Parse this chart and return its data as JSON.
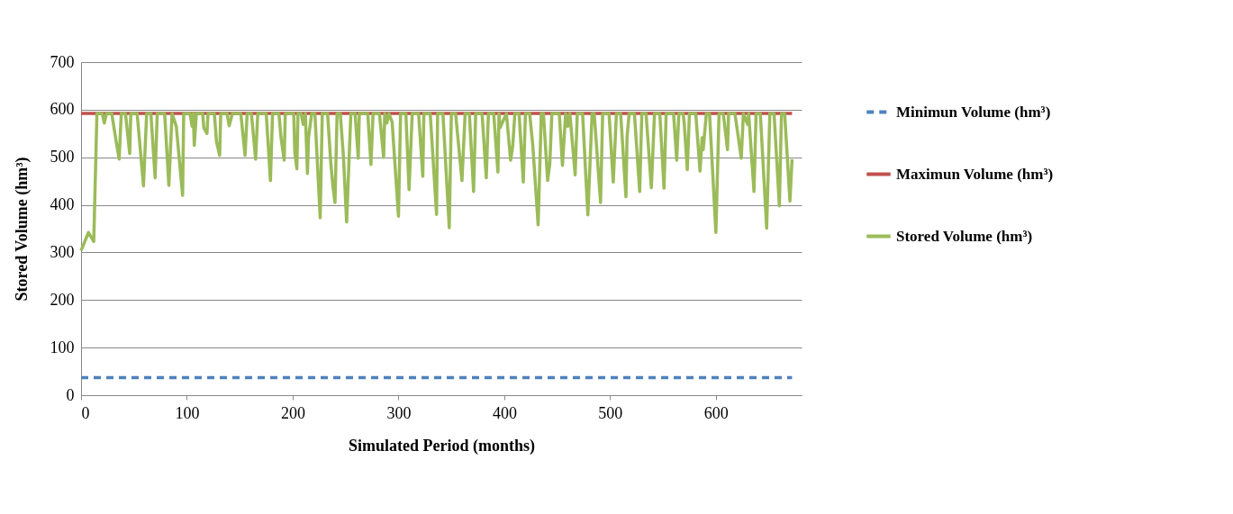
{
  "chart_data": {
    "type": "line",
    "xlabel": "Simulated Period (months)",
    "ylabel": "Stored Volume (hm³)",
    "xlim": [
      0,
      681
    ],
    "xticks": [
      0,
      100,
      200,
      300,
      400,
      500,
      600
    ],
    "ylim": [
      0,
      700
    ],
    "yticks": [
      0,
      100,
      200,
      300,
      400,
      500,
      600,
      700
    ],
    "grid": "y",
    "legend": "right",
    "series": [
      {
        "name": "Minimun Volume (hm³)",
        "color": "#4f81bd",
        "line_style": "dashed",
        "x": [
          0,
          672
        ],
        "values": [
          37,
          37
        ]
      },
      {
        "name": "Maximun Volume (hm³)",
        "color": "#c0504d",
        "line_style": "solid",
        "x": [
          0,
          672
        ],
        "values": [
          592,
          592
        ]
      },
      {
        "name": "Stored Volume (hm³)",
        "color": "#9bbb59",
        "line_style": "solid",
        "x": [
          0,
          7,
          12,
          15,
          20,
          22,
          24,
          29,
          33,
          36,
          38,
          42,
          46,
          47,
          53,
          59,
          62,
          66,
          70,
          72,
          79,
          83,
          86,
          90,
          96,
          97,
          103,
          105,
          106,
          107,
          109,
          115,
          116,
          119,
          120,
          126,
          128,
          131,
          132,
          138,
          140,
          143,
          151,
          155,
          157,
          161,
          165,
          167,
          175,
          179,
          181,
          187,
          189,
          192,
          193,
          201,
          202,
          204,
          205,
          208,
          210,
          212,
          214,
          215,
          218,
          221,
          226,
          228,
          233,
          236,
          238,
          240,
          242,
          245,
          248,
          251,
          253,
          255,
          259,
          262,
          263,
          271,
          274,
          276,
          282,
          286,
          287,
          289,
          291,
          294,
          300,
          302,
          307,
          310,
          313,
          319,
          323,
          324,
          330,
          336,
          337,
          342,
          348,
          350,
          354,
          360,
          363,
          367,
          369,
          371,
          373,
          379,
          383,
          385,
          390,
          394,
          395,
          396,
          402,
          406,
          408,
          410,
          414,
          418,
          420,
          424,
          427,
          432,
          435,
          437,
          441,
          443,
          445,
          452,
          455,
          458,
          460,
          462,
          467,
          469,
          474,
          479,
          483,
          485,
          491,
          493,
          499,
          503,
          506,
          510,
          515,
          516,
          518,
          523,
          528,
          530,
          534,
          539,
          542,
          547,
          551,
          553,
          560,
          563,
          565,
          569,
          570,
          573,
          575,
          581,
          585,
          587,
          588,
          591,
          594,
          600,
          603,
          607,
          611,
          612,
          618,
          624,
          626,
          630,
          631,
          636,
          638,
          642,
          648,
          651,
          655,
          660,
          662,
          665,
          670,
          672
        ],
        "values": [
          304,
          342,
          323,
          592,
          592,
          572,
          592,
          592,
          536,
          496,
          592,
          592,
          508,
          592,
          592,
          440,
          592,
          592,
          457,
          592,
          592,
          441,
          592,
          565,
          420,
          592,
          592,
          565,
          592,
          525,
          592,
          592,
          562,
          550,
          592,
          592,
          533,
          504,
          592,
          592,
          566,
          592,
          592,
          504,
          592,
          592,
          496,
          592,
          592,
          451,
          592,
          592,
          541,
          494,
          592,
          592,
          510,
          476,
          592,
          592,
          569,
          592,
          466,
          541,
          592,
          592,
          373,
          592,
          592,
          489,
          440,
          405,
          592,
          592,
          501,
          364,
          478,
          592,
          592,
          498,
          592,
          592,
          485,
          592,
          592,
          500,
          592,
          572,
          592,
          574,
          376,
          592,
          592,
          432,
          592,
          592,
          460,
          592,
          592,
          380,
          592,
          592,
          352,
          592,
          592,
          451,
          592,
          592,
          510,
          428,
          592,
          592,
          457,
          592,
          592,
          469,
          592,
          562,
          592,
          494,
          524,
          592,
          592,
          448,
          592,
          592,
          524,
          358,
          592,
          592,
          451,
          486,
          592,
          592,
          483,
          592,
          565,
          592,
          463,
          592,
          592,
          379,
          592,
          592,
          405,
          592,
          592,
          448,
          592,
          592,
          417,
          541,
          592,
          592,
          428,
          592,
          592,
          436,
          592,
          592,
          435,
          592,
          592,
          494,
          592,
          592,
          574,
          474,
          592,
          592,
          471,
          541,
          516,
          592,
          592,
          342,
          592,
          592,
          516,
          592,
          592,
          498,
          592,
          569,
          592,
          428,
          592,
          592,
          351,
          592,
          592,
          398,
          592,
          592,
          408,
          496
        ]
      }
    ]
  }
}
